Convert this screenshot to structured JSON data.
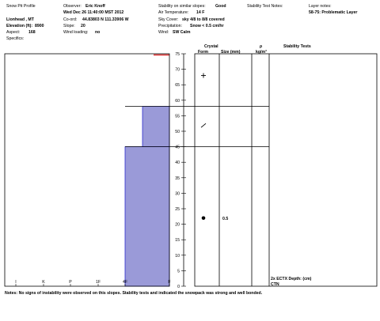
{
  "header": {
    "col1": {
      "title": "Snow Pit Profile",
      "location": "Lionhead , MT",
      "elevation_label": "Elevation (ft):",
      "elevation_value": "8900",
      "aspect_label": "Aspect:",
      "aspect_value": "168",
      "specifics_label": "Specifics:"
    },
    "col2": {
      "observer_label": "Observer:",
      "observer_value": "Eric Knoff",
      "datetime": "Wed Dec 26 11:40:00 MST 2012",
      "coord_label": "Co-ord:",
      "coord_value": "44.83803 N 111.33906 W",
      "slope_label": "Slope:",
      "slope_value": "20",
      "wind_loading_label": "Wind loading:",
      "wind_loading_value": "no"
    },
    "col3": {
      "stability_label": "Stability on similar slopes:",
      "stability_value": "Good",
      "air_temp_label": "Air Temperature:",
      "air_temp_value": "14 F",
      "sky_label": "Sky Cover:",
      "sky_value": "sky 4/8 to 8/8 covered",
      "precip_label": "Precipitation:",
      "precip_value": "Snow < 0.5 cm/hr",
      "wind_label": "Wind:",
      "wind_value": "SW Calm"
    },
    "col4": {
      "stability_notes_label": "Stability Test Notes:"
    },
    "col5": {
      "layer_notes_label": "Layer notes:",
      "layer_notes_value": "58-75: Problematic Layer"
    }
  },
  "table_headers": {
    "crystal": "Crystal",
    "form": "Form",
    "size": "Size (mm)",
    "rho": "ρ",
    "density_unit": "kg/m³",
    "stability_tests": "Stability Tests"
  },
  "stability_test": {
    "result": "2x ECTX   Depth: (cm)",
    "code": "CTN"
  },
  "notes": "Notes: No signs of instability were observed on this slopes.  Stability tests and indicated the snowpack was strong and well bonded.",
  "colors": {
    "layer_fill": "#9a9ad8",
    "layer_edge": "#2b2bd0",
    "surface": "#e03030",
    "axis": "#000000"
  },
  "chart_data": {
    "type": "bar",
    "y_axis": {
      "min": 0,
      "max": 75,
      "ticks": [
        0,
        5,
        10,
        15,
        20,
        25,
        30,
        35,
        40,
        45,
        50,
        55,
        60,
        65,
        70,
        75
      ]
    },
    "x_axis": {
      "categories": [
        "I",
        "K",
        "P",
        "1F",
        "4F",
        "F"
      ]
    },
    "layers": [
      {
        "bottom": 0,
        "top": 45,
        "hardness": "4F"
      },
      {
        "bottom": 45,
        "top": 58,
        "hardness": "F+"
      },
      {
        "bottom": 58,
        "top": 75,
        "hardness": "F"
      }
    ],
    "layer_boundaries": [
      45,
      58
    ],
    "crystal_symbols": [
      {
        "depth": 68,
        "form": "+"
      },
      {
        "depth": 52,
        "form": "/"
      },
      {
        "depth": 22,
        "form": "●",
        "size": "0.5"
      }
    ]
  }
}
